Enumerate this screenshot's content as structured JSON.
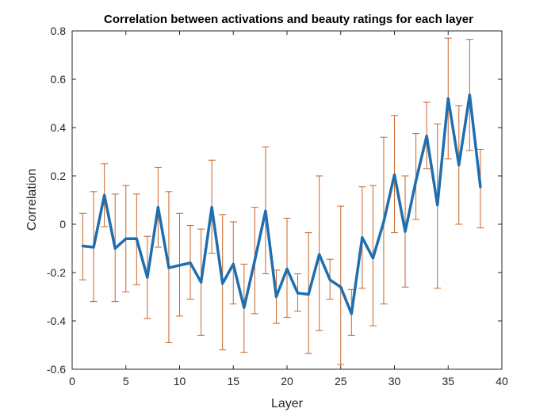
{
  "chart_data": {
    "type": "line",
    "title": "Correlation between activations and beauty ratings for each layer",
    "xlabel": "Layer",
    "ylabel": "Correlation",
    "xlim": [
      0,
      40
    ],
    "ylim": [
      -0.6,
      0.8
    ],
    "xticks": [
      0,
      5,
      10,
      15,
      20,
      25,
      30,
      35,
      40
    ],
    "yticks": [
      -0.6,
      -0.4,
      -0.2,
      0,
      0.2,
      0.4,
      0.6,
      0.8
    ],
    "xtick_labels": [
      "0",
      "5",
      "10",
      "15",
      "20",
      "25",
      "30",
      "35",
      "40"
    ],
    "ytick_labels": [
      "-0.6",
      "-0.4",
      "-0.2",
      "0",
      "0.2",
      "0.4",
      "0.6",
      "0.8"
    ],
    "grid": false,
    "line_color": "#1f6eb0",
    "errorbar_color": "#c8642a",
    "series": [
      {
        "x": [
          1,
          2,
          3,
          4,
          5,
          6,
          7,
          8,
          9,
          10,
          11,
          12,
          13,
          14,
          15,
          16,
          17,
          18,
          19,
          20,
          21,
          22,
          23,
          24,
          25,
          26,
          27,
          28,
          29,
          30,
          31,
          32,
          33,
          34,
          35,
          36,
          37,
          38
        ],
        "y": [
          -0.09,
          -0.095,
          0.12,
          -0.1,
          -0.06,
          -0.06,
          -0.22,
          0.07,
          -0.18,
          -0.17,
          -0.16,
          -0.24,
          0.07,
          -0.245,
          -0.165,
          -0.345,
          -0.15,
          0.055,
          -0.3,
          -0.185,
          -0.285,
          -0.29,
          -0.125,
          -0.23,
          -0.26,
          -0.37,
          -0.055,
          -0.14,
          0.01,
          0.205,
          -0.03,
          0.18,
          0.365,
          0.08,
          0.52,
          0.245,
          0.535,
          0.155
        ],
        "lower": [
          -0.23,
          -0.32,
          -0.01,
          -0.32,
          -0.28,
          -0.25,
          -0.39,
          -0.095,
          -0.49,
          -0.38,
          -0.31,
          -0.46,
          -0.12,
          -0.52,
          -0.33,
          -0.53,
          -0.37,
          -0.205,
          -0.41,
          -0.385,
          -0.36,
          -0.535,
          -0.44,
          -0.31,
          -0.58,
          -0.46,
          -0.265,
          -0.42,
          -0.33,
          -0.035,
          -0.26,
          0.02,
          0.23,
          -0.265,
          0.27,
          0.0,
          0.305,
          -0.015
        ],
        "upper": [
          0.045,
          0.135,
          0.25,
          0.125,
          0.16,
          0.125,
          -0.05,
          0.235,
          0.135,
          0.045,
          -0.005,
          -0.02,
          0.265,
          0.04,
          0.01,
          -0.165,
          0.07,
          0.32,
          -0.19,
          0.025,
          -0.205,
          -0.035,
          0.2,
          -0.145,
          0.075,
          -0.27,
          0.155,
          0.16,
          0.36,
          0.45,
          0.2,
          0.375,
          0.505,
          0.415,
          0.77,
          0.49,
          0.765,
          0.31
        ]
      }
    ]
  }
}
